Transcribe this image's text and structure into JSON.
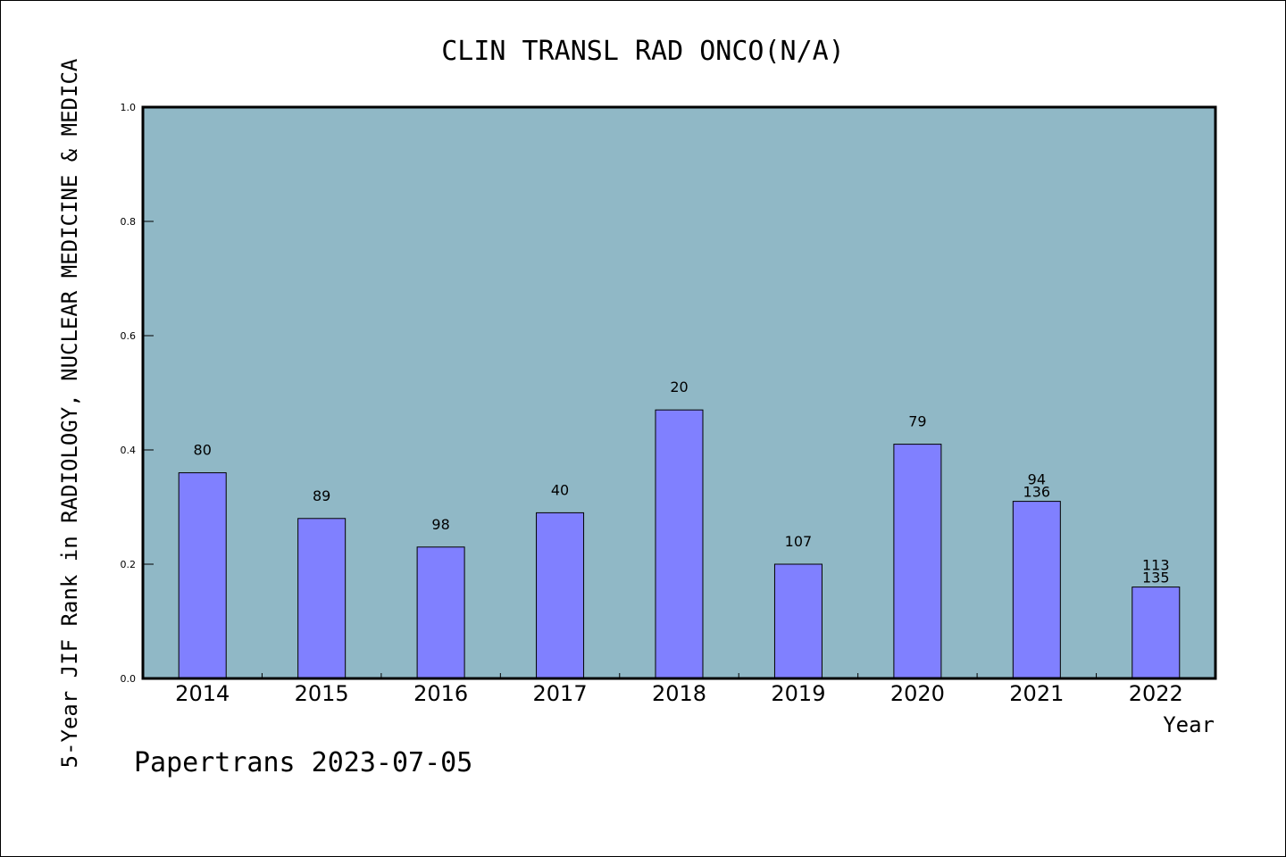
{
  "chart_data": {
    "type": "bar",
    "title": "CLIN TRANSL RAD ONCO(N/A)",
    "xlabel": "Year",
    "ylabel": "5-Year JIF Rank in RADIOLOGY, NUCLEAR MEDICINE & MEDICA",
    "categories": [
      "2014",
      "2015",
      "2016",
      "2017",
      "2018",
      "2019",
      "2020",
      "2021",
      "2022"
    ],
    "values": [
      0.36,
      0.28,
      0.23,
      0.29,
      0.47,
      0.2,
      0.41,
      0.31,
      0.16
    ],
    "bar_labels": [
      [
        "80"
      ],
      [
        "89"
      ],
      [
        "98"
      ],
      [
        "40"
      ],
      [
        "20"
      ],
      [
        "107"
      ],
      [
        "79"
      ],
      [
        "94",
        "136"
      ],
      [
        "113",
        "135"
      ]
    ],
    "ylim": [
      0,
      1.0
    ],
    "yticks": [
      "0.0",
      "0.2",
      "0.4",
      "0.6",
      "0.8",
      "1.0"
    ],
    "grid": false,
    "legend": "none",
    "colors": {
      "plot_background": "#90b8c6",
      "bar_fill": "#8080ff",
      "axis": "#000000"
    }
  },
  "footer": "Papertrans 2023-07-05"
}
